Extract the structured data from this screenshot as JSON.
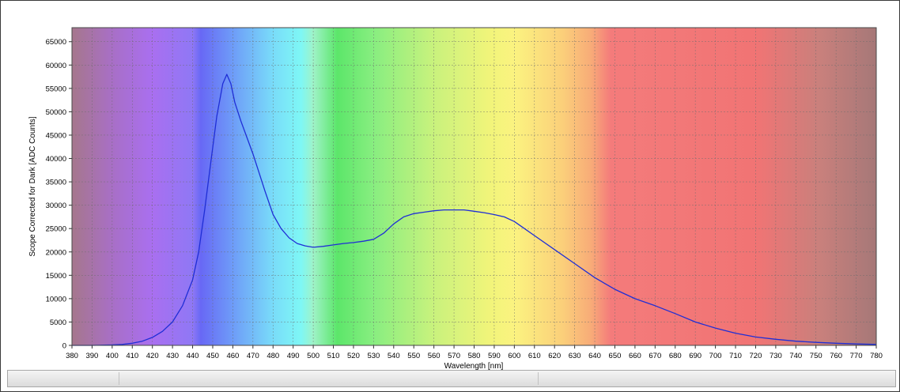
{
  "chart_data": {
    "type": "line",
    "title": "",
    "xlabel": "Wavelength [nm]",
    "ylabel": "Scope Corrected for Dark [ADC Counts]",
    "xlim": [
      380,
      780
    ],
    "ylim": [
      0,
      68000
    ],
    "x_ticks": [
      380,
      390,
      400,
      410,
      420,
      430,
      440,
      450,
      460,
      470,
      480,
      490,
      500,
      510,
      520,
      530,
      540,
      550,
      560,
      570,
      580,
      590,
      600,
      610,
      620,
      630,
      640,
      650,
      660,
      670,
      680,
      690,
      700,
      710,
      720,
      730,
      740,
      750,
      760,
      770,
      780
    ],
    "y_ticks": [
      0,
      5000,
      10000,
      15000,
      20000,
      25000,
      30000,
      35000,
      40000,
      45000,
      50000,
      55000,
      60000,
      65000
    ],
    "grid": true,
    "legend": "none",
    "background": "visible-spectrum",
    "series": [
      {
        "color": "#1f2ed6",
        "x": [
          380,
          390,
          400,
          405,
          410,
          415,
          420,
          425,
          430,
          435,
          440,
          443,
          446,
          449,
          452,
          455,
          457,
          459,
          461,
          464,
          467,
          470,
          473,
          476,
          480,
          484,
          488,
          492,
          496,
          500,
          505,
          510,
          515,
          520,
          525,
          530,
          535,
          540,
          545,
          550,
          555,
          560,
          565,
          570,
          575,
          580,
          585,
          590,
          595,
          600,
          605,
          610,
          620,
          630,
          640,
          650,
          660,
          670,
          680,
          690,
          700,
          710,
          720,
          730,
          740,
          750,
          760,
          770,
          780
        ],
        "values": [
          0,
          0,
          100,
          200,
          450,
          900,
          1700,
          3000,
          5000,
          8500,
          14000,
          20000,
          29000,
          39000,
          49000,
          56000,
          58000,
          56000,
          52000,
          48000,
          44500,
          41000,
          37000,
          33000,
          28000,
          25000,
          23000,
          21800,
          21300,
          21000,
          21200,
          21500,
          21800,
          22000,
          22300,
          22700,
          24000,
          26000,
          27500,
          28200,
          28500,
          28800,
          29000,
          29000,
          29000,
          28700,
          28400,
          28000,
          27500,
          26500,
          25000,
          23500,
          20500,
          17500,
          14500,
          12000,
          10000,
          8500,
          6800,
          5000,
          3700,
          2600,
          1800,
          1300,
          900,
          650,
          450,
          300,
          200
        ]
      }
    ]
  }
}
